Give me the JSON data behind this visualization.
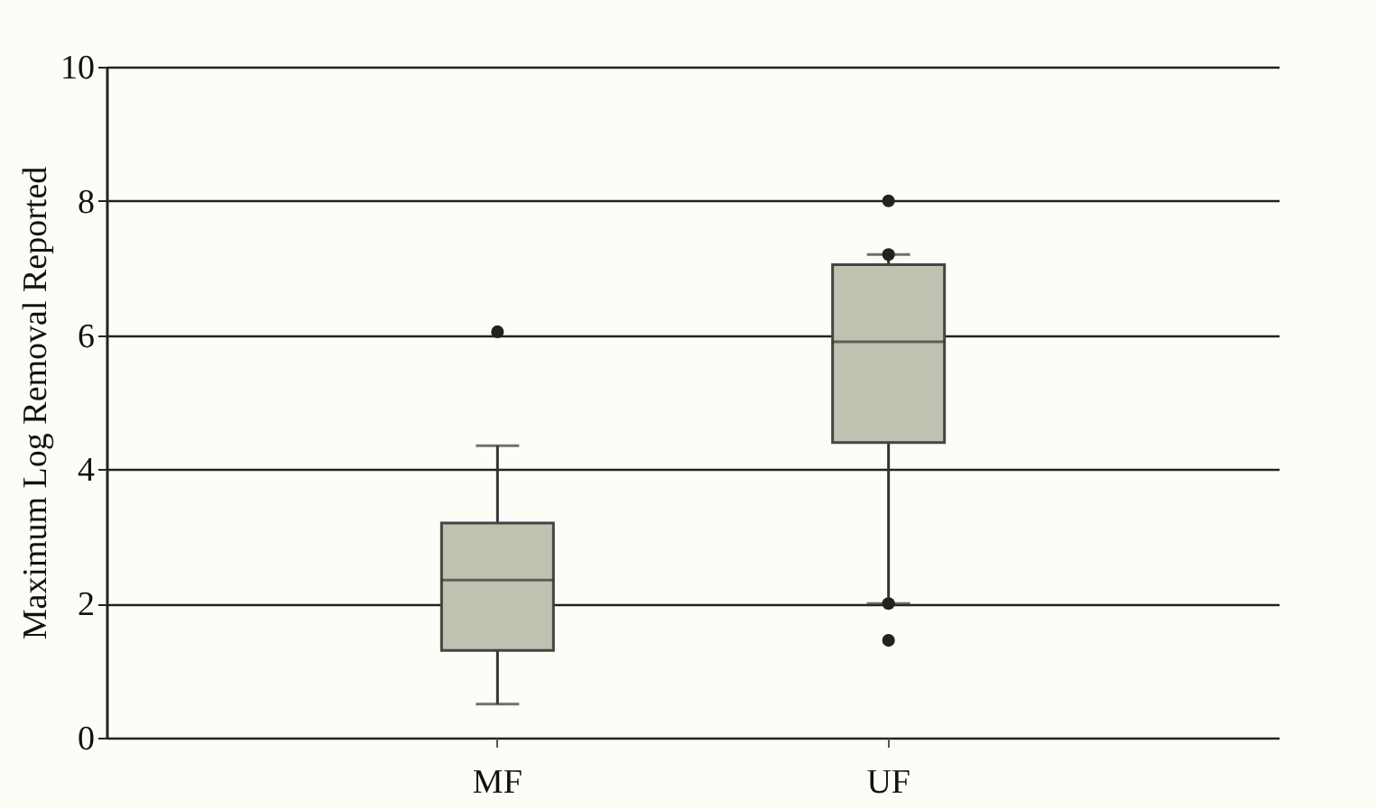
{
  "chart_data": {
    "type": "box",
    "ylabel": "Maximum Log Removal Reported",
    "categories": [
      "MF",
      "UF"
    ],
    "series": [
      {
        "color": "#bfc2b0",
        "boxes": [
          {
            "low": 0.5,
            "q1": 1.3,
            "median": 2.35,
            "q3": 3.2,
            "high": 4.35,
            "outliers": [
              6.05
            ]
          },
          {
            "low": 2.0,
            "q1": 4.4,
            "median": 5.9,
            "q3": 7.05,
            "high": 7.2,
            "outliers": [
              8.0,
              7.2,
              2.0,
              1.45
            ]
          }
        ]
      }
    ],
    "ylim": [
      0,
      10
    ],
    "yticks": [
      0,
      2,
      4,
      6,
      8,
      10
    ],
    "grid": "y"
  }
}
